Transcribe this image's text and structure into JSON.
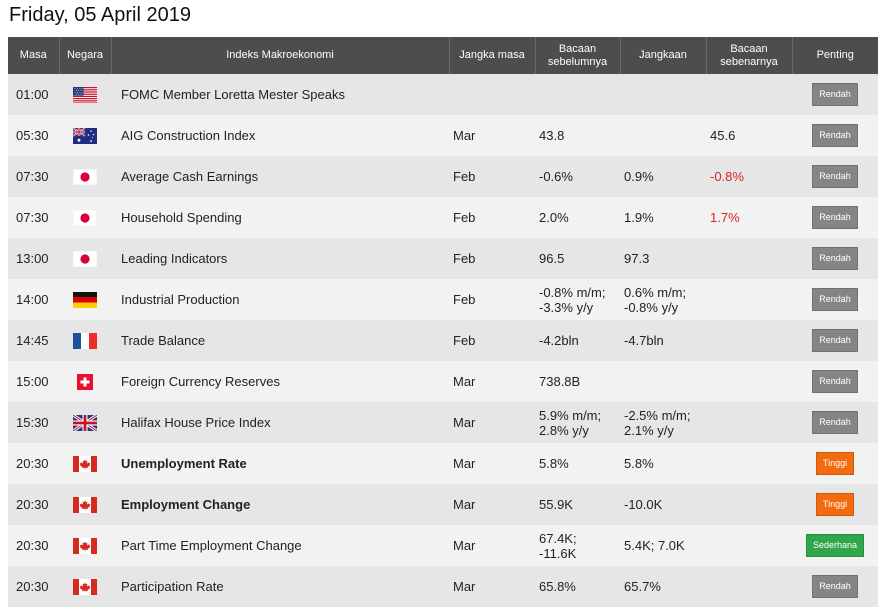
{
  "page_title": "Friday, 05 April 2019",
  "headers": {
    "time": "Masa",
    "country": "Negara",
    "event": "Indeks Makroekonomi",
    "period": "Jangka masa",
    "previous": "Bacaan sebelumnya",
    "forecast": "Jangkaan",
    "actual": "Bacaan sebenarnya",
    "importance": "Penting"
  },
  "colors": {
    "low": "#858585",
    "high": "#f26b0f",
    "medium": "#32a64a",
    "negative": "#e02020"
  },
  "rows": [
    {
      "time": "01:00",
      "flag": "us",
      "event": "FOMC Member Loretta Mester Speaks",
      "bold": false,
      "period": "",
      "previous": "",
      "forecast": "",
      "actual": "",
      "actual_neg": false,
      "importance": "Rendah",
      "level": "low"
    },
    {
      "time": "05:30",
      "flag": "au",
      "event": "AIG Construction Index",
      "bold": false,
      "period": "Mar",
      "previous": "43.8",
      "forecast": "",
      "actual": "45.6",
      "actual_neg": false,
      "importance": "Rendah",
      "level": "low"
    },
    {
      "time": "07:30",
      "flag": "jp",
      "event": "Average Cash Earnings",
      "bold": false,
      "period": "Feb",
      "previous": "-0.6%",
      "forecast": "0.9%",
      "actual": "-0.8%",
      "actual_neg": true,
      "importance": "Rendah",
      "level": "low"
    },
    {
      "time": "07:30",
      "flag": "jp",
      "event": "Household Spending",
      "bold": false,
      "period": "Feb",
      "previous": "2.0%",
      "forecast": "1.9%",
      "actual": "1.7%",
      "actual_neg": true,
      "importance": "Rendah",
      "level": "low"
    },
    {
      "time": "13:00",
      "flag": "jp",
      "event": "Leading Indicators",
      "bold": false,
      "period": "Feb",
      "previous": "96.5",
      "forecast": "97.3",
      "actual": "",
      "actual_neg": false,
      "importance": "Rendah",
      "level": "low"
    },
    {
      "time": "14:00",
      "flag": "de",
      "event": "Industrial Production",
      "bold": false,
      "period": "Feb",
      "previous": "-0.8% m/m; -3.3% y/y",
      "forecast": "0.6% m/m; -0.8% y/y",
      "actual": "",
      "actual_neg": false,
      "importance": "Rendah",
      "level": "low"
    },
    {
      "time": "14:45",
      "flag": "fr",
      "event": "Trade Balance",
      "bold": false,
      "period": "Feb",
      "previous": "-4.2bln",
      "forecast": "-4.7bln",
      "actual": "",
      "actual_neg": false,
      "importance": "Rendah",
      "level": "low"
    },
    {
      "time": "15:00",
      "flag": "ch",
      "event": "Foreign Currency Reserves",
      "bold": false,
      "period": "Mar",
      "previous": "738.8B",
      "forecast": "",
      "actual": "",
      "actual_neg": false,
      "importance": "Rendah",
      "level": "low"
    },
    {
      "time": "15:30",
      "flag": "gb",
      "event": "Halifax House Price Index",
      "bold": false,
      "period": "Mar",
      "previous": "5.9% m/m; 2.8% y/y",
      "forecast": "-2.5% m/m; 2.1% y/y",
      "actual": "",
      "actual_neg": false,
      "importance": "Rendah",
      "level": "low"
    },
    {
      "time": "20:30",
      "flag": "ca",
      "event": "Unemployment Rate",
      "bold": true,
      "period": "Mar",
      "previous": "5.8%",
      "forecast": "5.8%",
      "actual": "",
      "actual_neg": false,
      "importance": "Tinggi",
      "level": "high"
    },
    {
      "time": "20:30",
      "flag": "ca",
      "event": "Employment Change",
      "bold": true,
      "period": "Mar",
      "previous": "55.9K",
      "forecast": "-10.0K",
      "actual": "",
      "actual_neg": false,
      "importance": "Tinggi",
      "level": "high"
    },
    {
      "time": "20:30",
      "flag": "ca",
      "event": "Part Time Employment Change",
      "bold": false,
      "period": "Mar",
      "previous": "67.4K; -11.6K",
      "forecast": "5.4K; 7.0K",
      "actual": "",
      "actual_neg": false,
      "importance": "Sederhana",
      "level": "medium"
    },
    {
      "time": "20:30",
      "flag": "ca",
      "event": "Participation Rate",
      "bold": false,
      "period": "Mar",
      "previous": "65.8%",
      "forecast": "65.7%",
      "actual": "",
      "actual_neg": false,
      "importance": "Rendah",
      "level": "low"
    }
  ]
}
